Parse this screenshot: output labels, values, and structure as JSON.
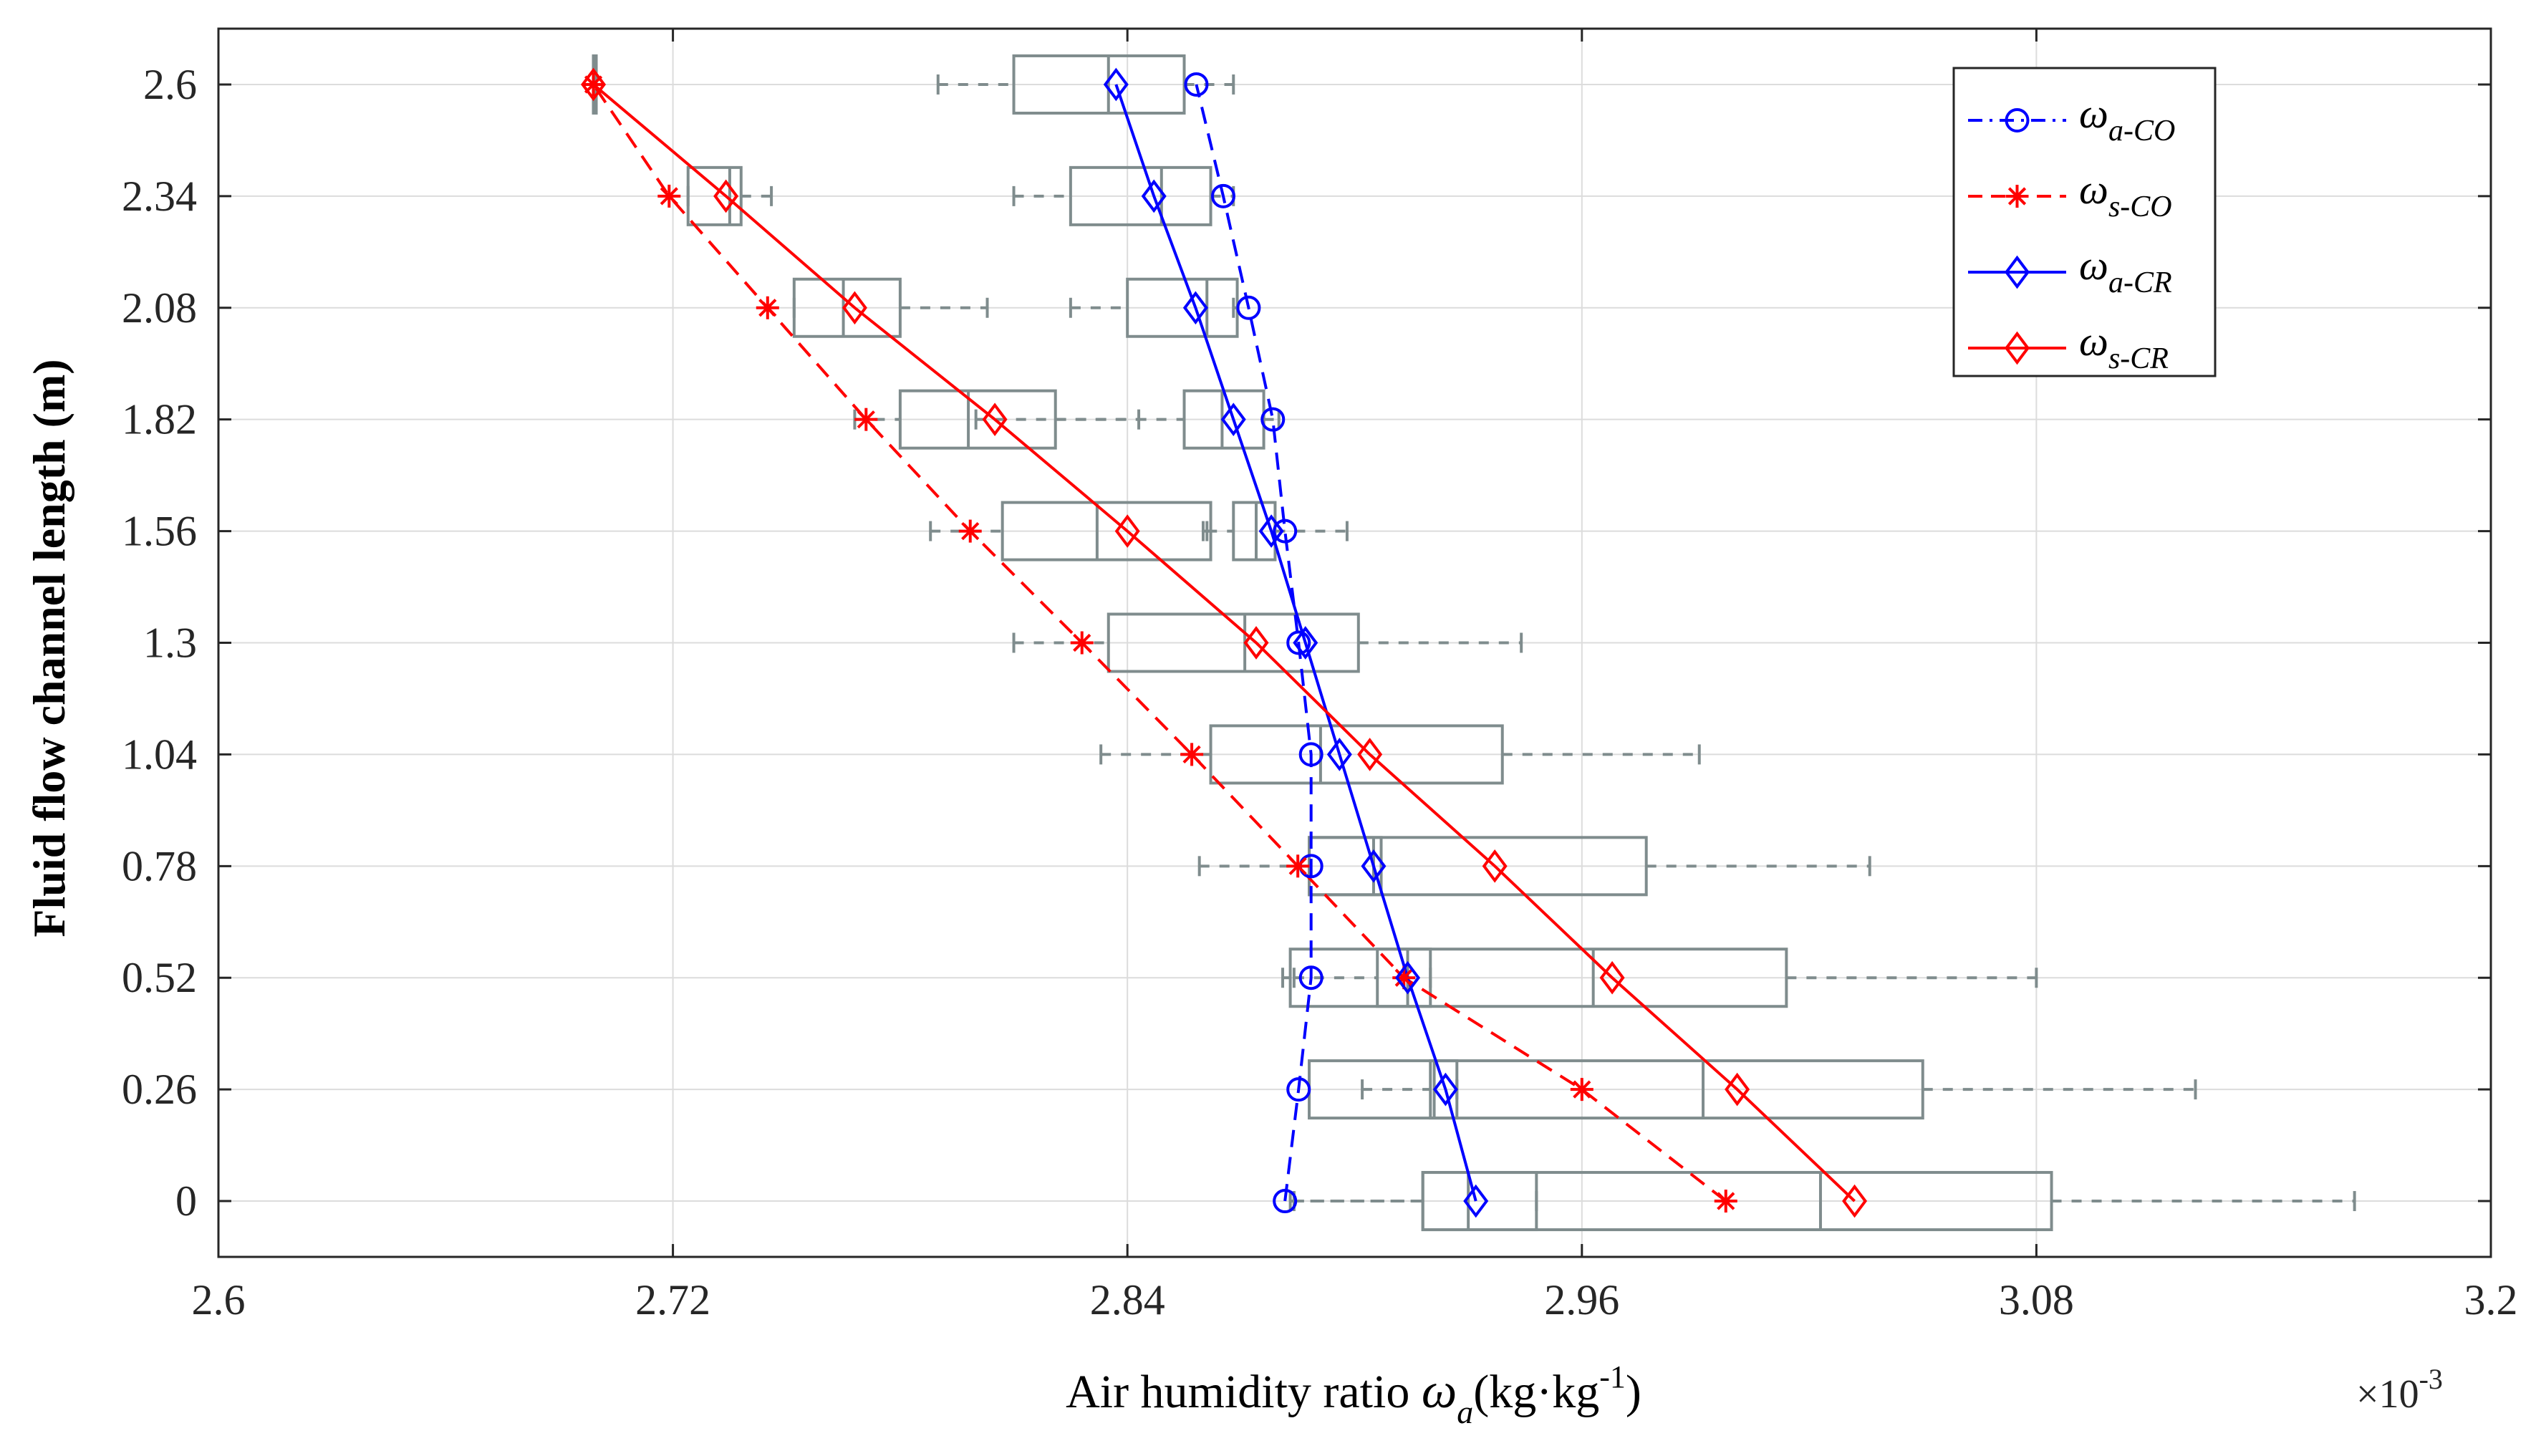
{
  "chart_data": {
    "type": "line",
    "orientation": "horizontal",
    "title": "",
    "xlabel": {
      "prefix": "Air humidity ratio ",
      "symbol": "ω",
      "symbol_sub": "a",
      "units_pre": "(kg·kg",
      "units_sup": "-1",
      "units_post": ")"
    },
    "ylabel": "Fluid flow channel length  (m)",
    "x_multiplier": {
      "text": "×10",
      "exp": "-3"
    },
    "xlim": [
      2.6,
      3.2
    ],
    "x_ticks": [
      2.6,
      2.72,
      2.84,
      2.96,
      3.08,
      3.2
    ],
    "x_tick_labels": [
      "2.6",
      "2.72",
      "2.84",
      "2.96",
      "3.08",
      "3.2"
    ],
    "y_ticks": [
      0,
      0.26,
      0.52,
      0.78,
      1.04,
      1.3,
      1.56,
      1.82,
      2.08,
      2.34,
      2.6
    ],
    "y_tick_labels": [
      "0",
      "0.26",
      "0.52",
      "0.78",
      "1.04",
      "1.3",
      "1.56",
      "1.82",
      "2.08",
      "2.34",
      "2.6"
    ],
    "ylim": [
      -0.13,
      2.73
    ],
    "grid": true,
    "legend_position": "top-right",
    "legend": [
      {
        "symbol": "ω",
        "sub": "a-CO",
        "color": "#0000ff",
        "style": "dash-dot",
        "marker": "circle"
      },
      {
        "symbol": "ω",
        "sub": "s-CO",
        "color": "#ff0000",
        "style": "dashed",
        "marker": "asterisk"
      },
      {
        "symbol": "ω",
        "sub": "a-CR",
        "color": "#0000ff",
        "style": "solid",
        "marker": "diamond"
      },
      {
        "symbol": "ω",
        "sub": "s-CR",
        "color": "#ff0000",
        "style": "solid",
        "marker": "diamond"
      }
    ],
    "series": [
      {
        "name": "ω a-CO",
        "color": "#0000ff",
        "dash": "dashed",
        "marker": "circle",
        "y": [
          0,
          0.26,
          0.52,
          0.78,
          1.04,
          1.3,
          1.56,
          1.82,
          2.08,
          2.34,
          2.6
        ],
        "x": [
          2.8816,
          2.8852,
          2.8885,
          2.8885,
          2.8885,
          2.8852,
          2.8816,
          2.8784,
          2.872,
          2.8653,
          2.8582
        ]
      },
      {
        "name": "ω s-CO",
        "color": "#ff0000",
        "dash": "dashed",
        "marker": "asterisk",
        "y": [
          0,
          0.26,
          0.52,
          0.78,
          1.04,
          1.3,
          1.56,
          1.82,
          2.08,
          2.34,
          2.6
        ],
        "x": [
          2.998,
          2.96,
          2.913,
          2.885,
          2.857,
          2.828,
          2.7985,
          2.771,
          2.745,
          2.719,
          2.699
        ]
      },
      {
        "name": "ω a-CR",
        "color": "#0000ff",
        "dash": "solid",
        "marker": "diamond",
        "y": [
          0,
          0.26,
          0.52,
          0.78,
          1.04,
          1.3,
          1.56,
          1.82,
          2.08,
          2.34,
          2.6
        ],
        "x": [
          2.932,
          2.924,
          2.914,
          2.905,
          2.896,
          2.887,
          2.878,
          2.868,
          2.858,
          2.847,
          2.837
        ]
      },
      {
        "name": "ω s-CR",
        "color": "#ff0000",
        "dash": "solid",
        "marker": "diamond",
        "y": [
          0,
          0.26,
          0.52,
          0.78,
          1.04,
          1.3,
          1.56,
          1.82,
          2.08,
          2.34,
          2.6
        ],
        "x": [
          3.032,
          3.001,
          2.968,
          2.937,
          2.904,
          2.874,
          2.84,
          2.805,
          2.768,
          2.734,
          2.699
        ]
      }
    ],
    "boxplots": {
      "color": "#7f8c8d",
      "boxes": [
        {
          "y": 2.6,
          "whisker_lo": 2.79,
          "q1": 2.81,
          "median": 2.835,
          "q3": 2.855,
          "whisker_hi": 2.868
        },
        {
          "y": 2.6,
          "whisker_lo": 2.699,
          "q1": 2.699,
          "median": 2.699,
          "q3": 2.699,
          "whisker_hi": 2.699
        },
        {
          "y": 2.34,
          "whisker_lo": 2.81,
          "q1": 2.825,
          "median": 2.849,
          "q3": 2.862,
          "whisker_hi": 2.868
        },
        {
          "y": 2.34,
          "whisker_lo": 2.724,
          "q1": 2.724,
          "median": 2.735,
          "q3": 2.738,
          "whisker_hi": 2.746
        },
        {
          "y": 2.08,
          "whisker_lo": 2.825,
          "q1": 2.84,
          "median": 2.861,
          "q3": 2.869,
          "whisker_hi": 2.868
        },
        {
          "y": 2.08,
          "whisker_lo": 2.752,
          "q1": 2.752,
          "median": 2.765,
          "q3": 2.78,
          "whisker_hi": 2.803
        },
        {
          "y": 1.82,
          "whisker_lo": 2.8,
          "q1": 2.855,
          "median": 2.865,
          "q3": 2.876,
          "whisker_hi": 2.88
        },
        {
          "y": 1.82,
          "whisker_lo": 2.768,
          "q1": 2.78,
          "median": 2.798,
          "q3": 2.821,
          "whisker_hi": 2.843
        },
        {
          "y": 1.56,
          "whisker_lo": 2.788,
          "q1": 2.807,
          "median": 2.832,
          "q3": 2.862,
          "whisker_hi": 2.86
        },
        {
          "y": 1.56,
          "whisker_lo": 2.861,
          "q1": 2.868,
          "median": 2.874,
          "q3": 2.879,
          "whisker_hi": 2.898
        },
        {
          "y": 1.3,
          "whisker_lo": 2.81,
          "q1": 2.835,
          "median": 2.871,
          "q3": 2.901,
          "whisker_hi": 2.944
        },
        {
          "y": 1.04,
          "whisker_lo": 2.833,
          "q1": 2.862,
          "median": 2.891,
          "q3": 2.939,
          "whisker_hi": 2.991
        },
        {
          "y": 0.78,
          "whisker_lo": 2.859,
          "q1": 2.888,
          "median": 2.905,
          "q3": 2.977,
          "whisker_hi": 3.036
        },
        {
          "y": 0.52,
          "whisker_lo": 2.884,
          "q1": 2.906,
          "median": 2.963,
          "q3": 3.014,
          "whisker_hi": 3.08
        },
        {
          "y": 0.26,
          "whisker_lo": 2.902,
          "q1": 2.92,
          "median": 2.992,
          "q3": 3.05,
          "whisker_hi": 3.122
        },
        {
          "y": 0,
          "whisker_lo": 2.884,
          "q1": 2.918,
          "median": 3.023,
          "q3": 3.084,
          "whisker_hi": 3.164
        },
        {
          "y": 0.78,
          "whisker_lo": 2.888,
          "q1": 2.888,
          "median": 2.888,
          "q3": 2.907,
          "whisker_hi": 2.907
        },
        {
          "y": 0.52,
          "whisker_lo": 2.881,
          "q1": 2.883,
          "median": 2.914,
          "q3": 2.92,
          "whisker_hi": 2.92
        },
        {
          "y": 0.26,
          "whisker_lo": 2.888,
          "q1": 2.888,
          "median": 2.921,
          "q3": 2.927,
          "whisker_hi": 2.927
        },
        {
          "y": 0,
          "whisker_lo": 2.883,
          "q1": 2.918,
          "median": 2.93,
          "q3": 2.948,
          "whisker_hi": 2.948
        }
      ]
    }
  }
}
